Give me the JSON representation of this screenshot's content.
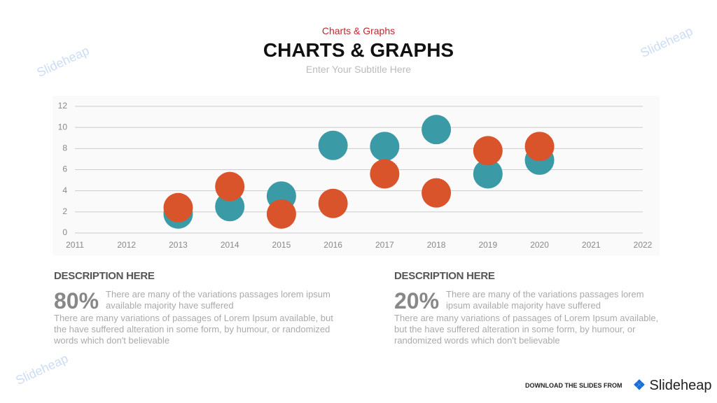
{
  "header": {
    "kicker": "Charts & Graphs",
    "title": "CHARTS & GRAPHS",
    "subtitle": "Enter Your Subtitle Here"
  },
  "chart_data": {
    "type": "scatter",
    "x": [
      2013,
      2014,
      2015,
      2016,
      2017,
      2018,
      2019,
      2020
    ],
    "series": [
      {
        "color": "#3a9aa6",
        "values": [
          1.8,
          2.5,
          3.5,
          8.3,
          8.2,
          9.8,
          5.6,
          6.9
        ]
      },
      {
        "color": "#d9542b",
        "values": [
          2.4,
          4.4,
          1.8,
          2.8,
          5.6,
          3.8,
          7.8,
          8.2
        ]
      }
    ],
    "xlim": [
      2011,
      2022
    ],
    "xticks": [
      2011,
      2012,
      2013,
      2014,
      2015,
      2016,
      2017,
      2018,
      2019,
      2020,
      2021,
      2022
    ],
    "ylim": [
      0,
      12
    ],
    "yticks": [
      0,
      2,
      4,
      6,
      8,
      10,
      12
    ],
    "grid": true
  },
  "descriptions": [
    {
      "heading": "DESCRIPTION HERE",
      "percent": "80%",
      "lead": "There are many of the variations passages lorem ipsum available majority have suffered",
      "body": "There are many variations of passages  of Lorem Ipsum available, but the have suffered alteration  in some  form, by humour,  or randomized  words which  don't believable"
    },
    {
      "heading": "DESCRIPTION HERE",
      "percent": "20%",
      "lead": "There are many of the variations passages lorem ipsum available majority have suffered",
      "body": "There are many variations of passages  of Lorem Ipsum available, but the have suffered alteration  in some  form, by humour, or randomized words which  don't believable"
    }
  ],
  "footer": {
    "note": "DOWNLOAD THE SLIDES FROM",
    "brand": "Slideheap"
  },
  "watermark": "Slideheap"
}
